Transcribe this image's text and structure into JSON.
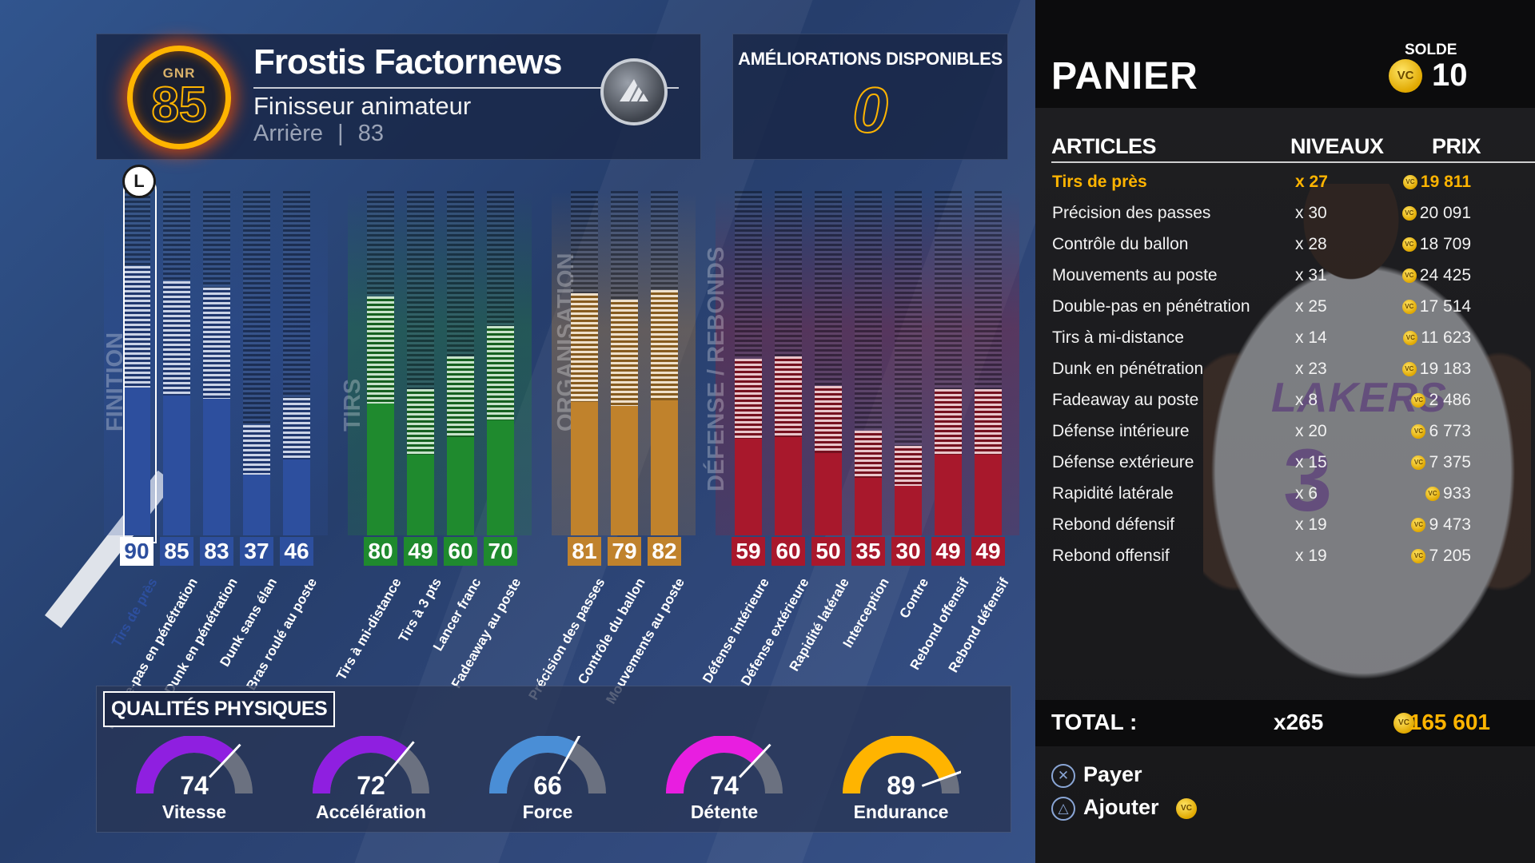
{
  "player": {
    "ovr_label": "GNR",
    "ovr": "85",
    "name": "Frostis Factornews",
    "archetype": "Finisseur animateur",
    "position": "Arrière",
    "position_rating": "83",
    "badge_icon": "wings-badge-icon"
  },
  "upgrades": {
    "title": "AMÉLIORATIONS DISPONIBLES",
    "value": "0"
  },
  "categories": [
    {
      "label": "FINITION",
      "color": "#2d4f9e",
      "attributes": [
        {
          "label": "Tirs de près",
          "value": 90,
          "new": 90
        },
        {
          "label": "Double-pas en pénétration",
          "value": 85,
          "new": 85
        },
        {
          "label": "Dunk en pénétration",
          "value": 83,
          "new": 83
        },
        {
          "label": "Dunk sans élan",
          "value": 37,
          "new": 37
        },
        {
          "label": "Bras roulé au poste",
          "value": 46,
          "new": 46
        }
      ]
    },
    {
      "label": "TIRS",
      "color": "#1f8a2e",
      "attributes": [
        {
          "label": "Tirs à mi-distance",
          "value": 80,
          "new": 80
        },
        {
          "label": "Tirs à 3 pts",
          "value": 49,
          "new": 49
        },
        {
          "label": "Lancer franc",
          "value": 60,
          "new": 60
        },
        {
          "label": "Fadeaway au poste",
          "value": 70,
          "new": 70
        }
      ]
    },
    {
      "label": "ORGANISATION",
      "color": "#c0822c",
      "attributes": [
        {
          "label": "Précision des passes",
          "value": 81,
          "new": 81
        },
        {
          "label": "Contrôle du ballon",
          "value": 79,
          "new": 79
        },
        {
          "label": "Mouvements au poste",
          "value": 82,
          "new": 82
        }
      ]
    },
    {
      "label": "DÉFENSE / REBONDS",
      "color": "#a8182c",
      "attributes": [
        {
          "label": "Défense intérieure",
          "value": 59,
          "new": 59
        },
        {
          "label": "Défense extérieure",
          "value": 60,
          "new": 60
        },
        {
          "label": "Rapidité latérale",
          "value": 50,
          "new": 50
        },
        {
          "label": "Interception",
          "value": 35,
          "new": 35
        },
        {
          "label": "Contre",
          "value": 30,
          "new": 30
        },
        {
          "label": "Rebond offensif",
          "value": 49,
          "new": 49
        },
        {
          "label": "Rebond défensif",
          "value": 49,
          "new": 49
        }
      ]
    }
  ],
  "selected_lock_icon": "L",
  "physical": {
    "title": "QUALITÉS PHYSIQUES",
    "gauges": [
      {
        "label": "Vitesse",
        "value": "74",
        "color": "#8f1fe0"
      },
      {
        "label": "Accélération",
        "value": "72",
        "color": "#8f1fe0"
      },
      {
        "label": "Force",
        "value": "66",
        "color": "#4a8ed6"
      },
      {
        "label": "Détente",
        "value": "74",
        "color": "#e81ee0"
      },
      {
        "label": "Endurance",
        "value": "89",
        "color": "#ffb400"
      }
    ]
  },
  "cart": {
    "title": "PANIER",
    "balance_label": "SOLDE",
    "balance": "10",
    "coin_icon": "VC",
    "jersey_text": "LAKERS",
    "jersey_number": "3",
    "headers": {
      "items": "ARTICLES",
      "levels": "NIVEAUX",
      "price": "PRIX"
    },
    "rows": [
      {
        "name": "Tirs de près",
        "levels": "x 27",
        "price": "19 811",
        "selected": true
      },
      {
        "name": "Précision des passes",
        "levels": "x 30",
        "price": "20 091"
      },
      {
        "name": "Contrôle du ballon",
        "levels": "x 28",
        "price": "18 709"
      },
      {
        "name": "Mouvements au poste",
        "levels": "x 31",
        "price": "24 425"
      },
      {
        "name": "Double-pas en pénétration",
        "levels": "x 25",
        "price": "17 514"
      },
      {
        "name": "Tirs à mi-distance",
        "levels": "x 14",
        "price": "11 623"
      },
      {
        "name": "Dunk en pénétration",
        "levels": "x 23",
        "price": "19 183"
      },
      {
        "name": "Fadeaway au poste",
        "levels": "x 8",
        "price": "2 486"
      },
      {
        "name": "Défense intérieure",
        "levels": "x 20",
        "price": "6 773"
      },
      {
        "name": "Défense extérieure",
        "levels": "x 15",
        "price": "7 375"
      },
      {
        "name": "Rapidité latérale",
        "levels": "x 6",
        "price": "933"
      },
      {
        "name": "Rebond défensif",
        "levels": "x 19",
        "price": "9 473"
      },
      {
        "name": "Rebond offensif",
        "levels": "x 19",
        "price": "7 205"
      }
    ],
    "total_label": "TOTAL :",
    "total_count": "x265",
    "total_price": "165 601",
    "actions": [
      {
        "button": "✕",
        "label": "Payer"
      },
      {
        "button": "△",
        "label": "Ajouter"
      }
    ]
  }
}
